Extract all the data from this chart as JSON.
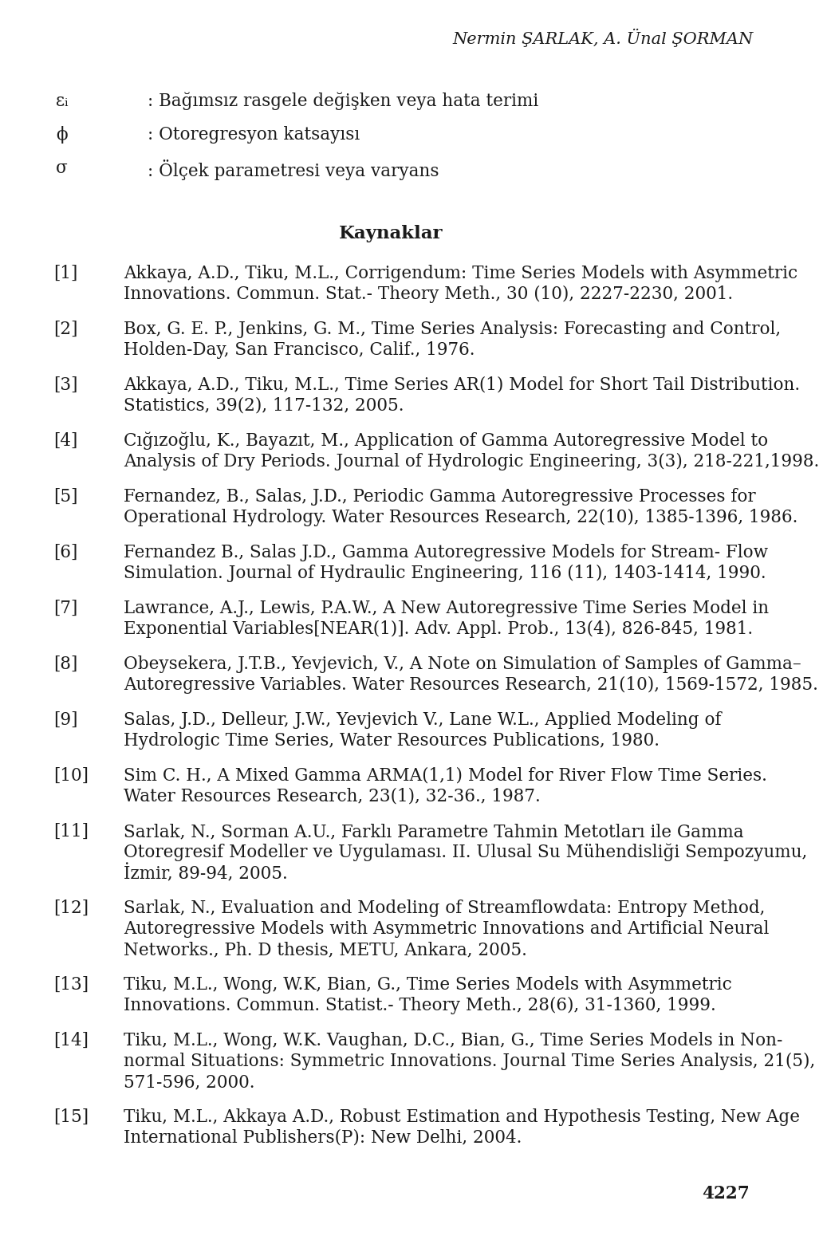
{
  "background_color": "#ffffff",
  "header_text": "Nermin ŞARLAK, A. Ünal ŞORMAN",
  "symbols": [
    {
      "symbol": "εᵢ",
      "description": ": Bağımsız rasgele değişken veya hata terimi"
    },
    {
      "symbol": "ϕ",
      "description": ": Otoregresyon katsayısı"
    },
    {
      "symbol": "σ",
      "description": ": Ölçek parametresi veya varyans"
    }
  ],
  "section_title": "Kaynaklar",
  "references": [
    {
      "number": "[1]",
      "text": "Akkaya, A.D., Tiku, M.L., Corrigendum: Time Series Models with Asymmetric\nInnovations. Commun. Stat.- Theory Meth., 30 (10), 2227-2230, 2001."
    },
    {
      "number": "[2]",
      "text": "Box, G. E. P., Jenkins, G. M., Time Series Analysis: Forecasting and Control,\nHolden-Day, San Francisco, Calif., 1976."
    },
    {
      "number": "[3]",
      "text": "Akkaya, A.D., Tiku, M.L., Time Series AR(1) Model for Short Tail Distribution.\nStatistics, 39(2), 117-132, 2005."
    },
    {
      "number": "[4]",
      "text": "Cığızoğlu, K., Bayazıt, M., Application of Gamma Autoregressive Model to\nAnalysis of Dry Periods. Journal of Hydrologic Engineering, 3(3), 218-221,1998."
    },
    {
      "number": "[5]",
      "text": "Fernandez, B., Salas, J.D., Periodic Gamma Autoregressive Processes for\nOperational Hydrology. Water Resources Research, 22(10), 1385-1396, 1986."
    },
    {
      "number": "[6]",
      "text": "Fernandez B., Salas J.D., Gamma Autoregressive Models for Stream- Flow\nSimulation. Journal of Hydraulic Engineering, 116 (11), 1403-1414, 1990."
    },
    {
      "number": "[7]",
      "text": "Lawrance, A.J., Lewis, P.A.W., A New Autoregressive Time Series Model in\nExponential Variables[NEAR(1)]. Adv. Appl. Prob., 13(4), 826-845, 1981."
    },
    {
      "number": "[8]",
      "text": "Obeysekera, J.T.B., Yevjevich, V., A Note on Simulation of Samples of Gamma–\nAutoregressive Variables. Water Resources Research, 21(10), 1569-1572, 1985."
    },
    {
      "number": "[9]",
      "text": "Salas, J.D., Delleur, J.W., Yevjevich V., Lane W.L., Applied Modeling of\nHydrologic Time Series, Water Resources Publications, 1980."
    },
    {
      "number": "[10]",
      "text": "Sim C. H., A Mixed Gamma ARMA(1,1) Model for River Flow Time Series.\nWater Resources Research, 23(1), 32-36., 1987."
    },
    {
      "number": "[11]",
      "text": "Sarlak, N., Sorman A.U., Farklı Parametre Tahmin Metotları ile Gamma\nOtoregresif Modeller ve Uygulaması. II. Ulusal Su Mühendisliği Sempozyumu,\nİzmir, 89-94, 2005."
    },
    {
      "number": "[12]",
      "text": "Sarlak, N., Evaluation and Modeling of Streamflowdata: Entropy Method,\nAutoregressive Models with Asymmetric Innovations and Artificial Neural\nNetworks., Ph. D thesis, METU, Ankara, 2005."
    },
    {
      "number": "[13]",
      "text": "Tiku, M.L., Wong, W.K, Bian, G., Time Series Models with Asymmetric\nInnovations. Commun. Statist.- Theory Meth., 28(6), 31-1360, 1999."
    },
    {
      "number": "[14]",
      "text": "Tiku, M.L., Wong, W.K. Vaughan, D.C., Bian, G., Time Series Models in Non-\nnormal Situations: Symmetric Innovations. Journal Time Series Analysis, 21(5),\n571-596, 2000."
    },
    {
      "number": "[15]",
      "text": "Tiku, M.L., Akkaya A.D., Robust Estimation and Hypothesis Testing, New Age\nInternational Publishers(P): New Delhi, 2004."
    }
  ],
  "page_number": "4227",
  "font_size": 15.5,
  "header_font_size": 15.0,
  "title_font_size": 16.5,
  "text_color": "#1a1a1a"
}
